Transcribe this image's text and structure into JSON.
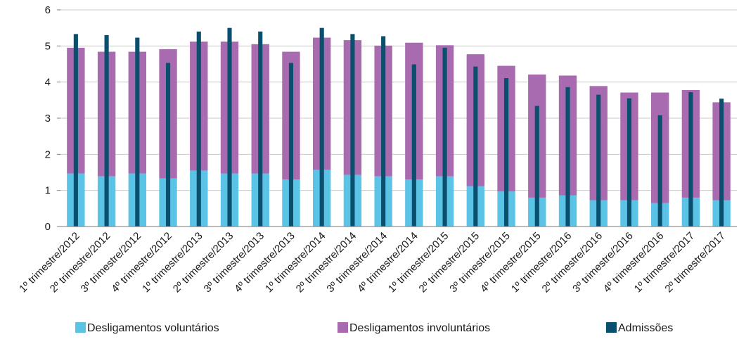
{
  "chart_data": {
    "type": "bar",
    "title": "",
    "xlabel": "",
    "ylabel": "",
    "ylim": [
      0,
      6
    ],
    "yticks": [
      0,
      1,
      2,
      3,
      4,
      5,
      6
    ],
    "grid": true,
    "legend_position": "bottom",
    "categories": [
      "1º trimestre/2012",
      "2º trimestre/2012",
      "3º trimestre/2012",
      "4º trimestre/2012",
      "1º trimestre/2013",
      "2º trimestre/2013",
      "3º trimestre/2013",
      "4º trimestre/2013",
      "1º trimestre/2014",
      "2º trimestre/2014",
      "3º trimestre/2014",
      "4º trimestre/2014",
      "1º trimestre/2015",
      "2º trimestre/2015",
      "3º trimestre/2015",
      "4º trimestre/2015",
      "1º trimestre/2016",
      "2º trimestre/2016",
      "3º trimestre/2016",
      "4º trimestre/2016",
      "1º trimestre/2017",
      "2º trimestre/2017"
    ],
    "series": [
      {
        "name": "Desligamentos voluntários",
        "color": "#5bc4e6",
        "stack": "desligamentos",
        "values": [
          1.47,
          1.39,
          1.47,
          1.33,
          1.55,
          1.47,
          1.47,
          1.3,
          1.57,
          1.43,
          1.39,
          1.3,
          1.39,
          1.12,
          0.97,
          0.8,
          0.86,
          0.73,
          0.73,
          0.65,
          0.8,
          0.73
        ]
      },
      {
        "name": "Desligamentos involuntários",
        "color": "#a86bb0",
        "stack": "desligamentos",
        "values": [
          3.48,
          3.45,
          3.37,
          3.58,
          3.57,
          3.65,
          3.58,
          3.54,
          3.66,
          3.73,
          3.62,
          3.79,
          3.63,
          3.65,
          3.48,
          3.41,
          3.32,
          3.16,
          2.98,
          3.06,
          2.98,
          2.71
        ]
      },
      {
        "name": "Admissões",
        "color": "#0a4f6e",
        "stack": "overlay",
        "values": [
          5.33,
          5.3,
          5.23,
          4.53,
          5.4,
          5.5,
          5.4,
          4.53,
          5.5,
          5.33,
          5.27,
          4.49,
          4.95,
          4.43,
          4.11,
          3.34,
          3.86,
          3.65,
          3.55,
          3.08,
          3.72,
          3.54
        ]
      }
    ]
  }
}
